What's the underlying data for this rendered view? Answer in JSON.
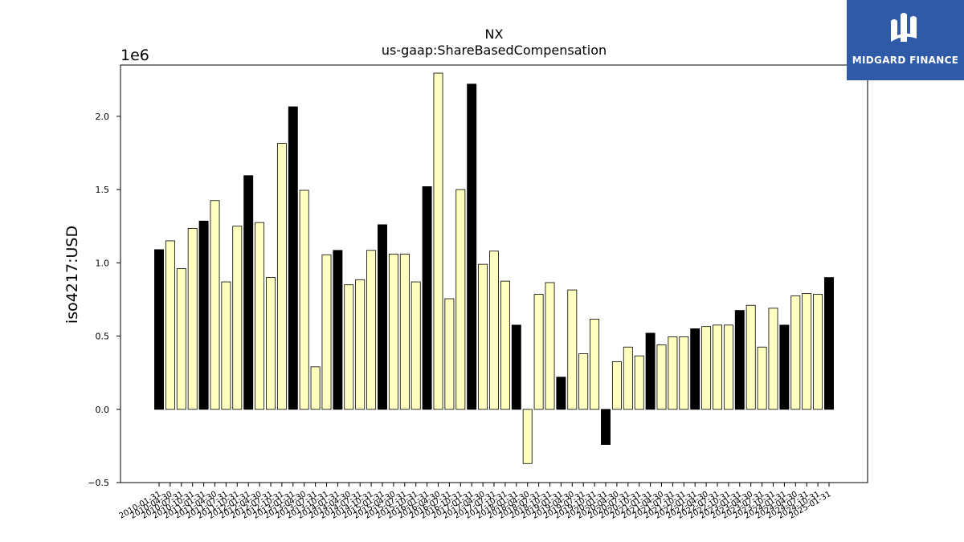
{
  "brand": {
    "name": "MIDGARD FINANCE",
    "color": "#2f5aa8",
    "icon": "midgard-logo-icon"
  },
  "chart_data": {
    "type": "bar",
    "title": "NX",
    "subtitle": "us-gaap:ShareBasedCompensation",
    "xlabel": "",
    "ylabel": "iso4217:USD",
    "y_offset_label": "1e6",
    "ylim": [
      -0.5,
      2.35
    ],
    "yticks": [
      -0.5,
      0.0,
      0.5,
      1.0,
      1.5,
      2.0
    ],
    "ytick_labels": [
      "−0.5",
      "0.0",
      "0.5",
      "1.0",
      "1.5",
      "2.0"
    ],
    "grid": false,
    "colors": {
      "quarter": "#ffffc0",
      "fiscal_year_end": "#000000",
      "edge": "#000000"
    },
    "categories": [
      "2010-01-31",
      "2010-04-30",
      "2010-07-31",
      "2010-10-31",
      "2011-01-31",
      "2011-04-30",
      "2011-07-31",
      "2011-10-31",
      "2012-01-31",
      "2012-04-30",
      "2012-07-31",
      "2012-10-31",
      "2013-01-31",
      "2013-04-30",
      "2013-07-31",
      "2013-10-31",
      "2014-01-31",
      "2014-04-30",
      "2014-07-31",
      "2014-10-31",
      "2015-01-31",
      "2015-04-30",
      "2015-07-31",
      "2015-10-31",
      "2016-01-31",
      "2016-04-30",
      "2016-07-31",
      "2016-10-31",
      "2017-01-31",
      "2017-04-30",
      "2017-07-31",
      "2017-10-31",
      "2018-01-31",
      "2018-04-30",
      "2018-07-31",
      "2018-10-31",
      "2019-01-31",
      "2019-04-30",
      "2019-07-31",
      "2019-10-31",
      "2020-01-31",
      "2020-04-30",
      "2020-07-31",
      "2020-10-31",
      "2021-01-31",
      "2021-04-30",
      "2021-07-31",
      "2021-10-31",
      "2022-01-31",
      "2022-04-30",
      "2022-07-31",
      "2022-10-31",
      "2023-01-31",
      "2023-04-30",
      "2023-07-31",
      "2023-10-31",
      "2024-01-31",
      "2024-04-30",
      "2024-07-31",
      "2024-10-31",
      "2025-01-31"
    ],
    "values": [
      1.09,
      1.15,
      0.96,
      1.235,
      1.285,
      1.425,
      0.87,
      1.25,
      1.595,
      1.275,
      0.9,
      1.815,
      2.065,
      1.495,
      0.29,
      1.055,
      1.085,
      0.85,
      0.885,
      1.085,
      1.26,
      1.06,
      1.06,
      0.87,
      1.52,
      2.295,
      0.755,
      1.5,
      2.22,
      0.99,
      1.08,
      0.875,
      0.575,
      -0.37,
      0.785,
      0.865,
      0.22,
      0.815,
      0.38,
      0.615,
      -0.24,
      0.325,
      0.425,
      0.365,
      0.52,
      0.44,
      0.495,
      0.495,
      0.55,
      0.565,
      0.575,
      0.575,
      0.675,
      0.71,
      0.425,
      0.69,
      0.575,
      0.775,
      0.79,
      0.785,
      0.9
    ],
    "fiscal_year_end": [
      true,
      false,
      false,
      false,
      true,
      false,
      false,
      false,
      true,
      false,
      false,
      false,
      true,
      false,
      false,
      false,
      true,
      false,
      false,
      false,
      true,
      false,
      false,
      false,
      true,
      false,
      false,
      false,
      true,
      false,
      false,
      false,
      true,
      false,
      false,
      false,
      true,
      false,
      false,
      false,
      true,
      false,
      false,
      false,
      true,
      false,
      false,
      false,
      true,
      false,
      false,
      false,
      true,
      false,
      false,
      false,
      true,
      false,
      false,
      false,
      true
    ]
  }
}
